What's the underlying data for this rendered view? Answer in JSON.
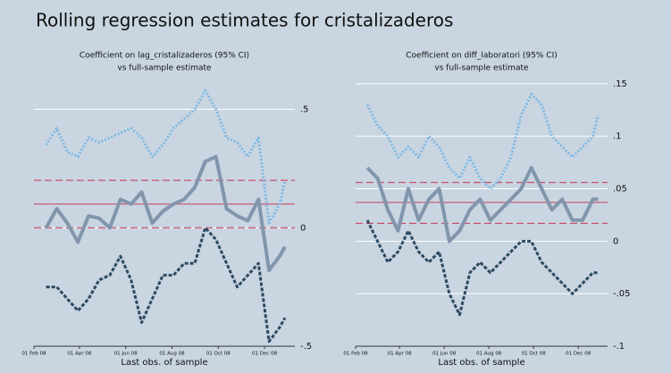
{
  "title": "Rolling regression estimates for cristalizaderos",
  "chart_data": [
    {
      "type": "line",
      "title": "Coefficient on lag_cristalizaderos (95% CI)",
      "subtitle": "vs full-sample estimate",
      "x_label": "Last obs. of sample",
      "x": [
        "2008-02-17",
        "2008-03-02",
        "2008-03-16",
        "2008-03-30",
        "2008-04-13",
        "2008-04-27",
        "2008-05-11",
        "2008-05-25",
        "2008-06-08",
        "2008-06-22",
        "2008-07-06",
        "2008-07-20",
        "2008-08-03",
        "2008-08-17",
        "2008-08-31",
        "2008-09-14",
        "2008-09-28",
        "2008-10-12",
        "2008-10-26",
        "2008-11-09",
        "2008-11-23",
        "2008-12-07",
        "2008-12-21",
        "2008-12-28"
      ],
      "series": [
        {
          "name": "upper",
          "color": "#7fb9e3",
          "values": [
            0.35,
            0.42,
            0.32,
            0.3,
            0.38,
            0.36,
            0.38,
            0.4,
            0.42,
            0.38,
            0.3,
            0.35,
            0.42,
            0.46,
            0.5,
            0.58,
            0.5,
            0.38,
            0.36,
            0.3,
            0.38,
            0.02,
            0.1,
            0.2
          ]
        },
        {
          "name": "estimate",
          "color": "#8196ac",
          "values": [
            0.0,
            0.08,
            0.02,
            -0.06,
            0.05,
            0.04,
            0.0,
            0.12,
            0.1,
            0.15,
            0.02,
            0.07,
            0.1,
            0.12,
            0.17,
            0.28,
            0.3,
            0.08,
            0.05,
            0.03,
            0.12,
            -0.18,
            -0.12,
            -0.08
          ]
        },
        {
          "name": "lower",
          "color": "#2d4a62",
          "values": [
            -0.25,
            -0.25,
            -0.3,
            -0.35,
            -0.3,
            -0.22,
            -0.2,
            -0.12,
            -0.22,
            -0.4,
            -0.3,
            -0.2,
            -0.2,
            -0.15,
            -0.15,
            0.0,
            -0.05,
            -0.15,
            -0.25,
            -0.2,
            -0.15,
            -0.48,
            -0.42,
            -0.38
          ]
        }
      ],
      "full_sample": {
        "estimate": 0.1,
        "ci": [
          0.0,
          0.2
        ],
        "color": "#c8506e"
      },
      "xlim": [
        "2008-02-01",
        "2009-01-10"
      ],
      "xticks": [
        {
          "value": "2008-02-01",
          "label": "01 Feb 08"
        },
        {
          "value": "2008-04-01",
          "label": "01 Apr 08"
        },
        {
          "value": "2008-06-01",
          "label": "01 Jun 08"
        },
        {
          "value": "2008-08-01",
          "label": "01 Aug 08"
        },
        {
          "value": "2008-10-01",
          "label": "01 Oct 08"
        },
        {
          "value": "2008-12-01",
          "label": "01 Dec 08"
        }
      ],
      "ylim": [
        -0.5,
        0.63
      ],
      "yticks": [
        {
          "value": -0.5,
          "label": "-.5"
        },
        0,
        {
          "value": 0.5,
          "label": ".5"
        }
      ],
      "grid": true
    },
    {
      "type": "line",
      "title": "Coefficient on diff_laboratori (95% CI)",
      "subtitle": "vs full-sample estimate",
      "x_label": "Last obs. of sample",
      "x": [
        "2008-02-17",
        "2008-03-02",
        "2008-03-16",
        "2008-03-30",
        "2008-04-13",
        "2008-04-27",
        "2008-05-11",
        "2008-05-25",
        "2008-06-08",
        "2008-06-22",
        "2008-07-06",
        "2008-07-20",
        "2008-08-03",
        "2008-08-17",
        "2008-08-31",
        "2008-09-14",
        "2008-09-28",
        "2008-10-12",
        "2008-10-26",
        "2008-11-09",
        "2008-11-23",
        "2008-12-07",
        "2008-12-21",
        "2008-12-28"
      ],
      "series": [
        {
          "name": "upper",
          "color": "#7fb9e3",
          "values": [
            0.13,
            0.11,
            0.1,
            0.08,
            0.09,
            0.08,
            0.1,
            0.09,
            0.07,
            0.06,
            0.08,
            0.06,
            0.05,
            0.06,
            0.08,
            0.12,
            0.14,
            0.13,
            0.1,
            0.09,
            0.08,
            0.09,
            0.1,
            0.12
          ]
        },
        {
          "name": "estimate",
          "color": "#8196ac",
          "values": [
            0.07,
            0.06,
            0.03,
            0.01,
            0.05,
            0.02,
            0.04,
            0.05,
            0.0,
            0.01,
            0.03,
            0.04,
            0.02,
            0.03,
            0.04,
            0.05,
            0.07,
            0.05,
            0.03,
            0.04,
            0.02,
            0.02,
            0.04,
            0.04
          ]
        },
        {
          "name": "lower",
          "color": "#2d4a62",
          "values": [
            0.02,
            0.0,
            -0.02,
            -0.01,
            0.01,
            -0.01,
            -0.02,
            -0.01,
            -0.05,
            -0.07,
            -0.03,
            -0.02,
            -0.03,
            -0.02,
            -0.01,
            0.0,
            0.0,
            -0.02,
            -0.03,
            -0.04,
            -0.05,
            -0.04,
            -0.03,
            -0.03
          ]
        }
      ],
      "full_sample": {
        "estimate": 0.037,
        "ci": [
          0.017,
          0.056
        ],
        "color": "#c8506e"
      },
      "xlim": [
        "2008-02-01",
        "2009-01-10"
      ],
      "xticks": [
        {
          "value": "2008-02-01",
          "label": "01 Feb 08"
        },
        {
          "value": "2008-04-01",
          "label": "01 Apr 08"
        },
        {
          "value": "2008-06-01",
          "label": "01 Jun 08"
        },
        {
          "value": "2008-08-01",
          "label": "01 Aug 08"
        },
        {
          "value": "2008-10-01",
          "label": "01 Oct 08"
        },
        {
          "value": "2008-12-01",
          "label": "01 Dec 08"
        }
      ],
      "ylim": [
        -0.1,
        0.155
      ],
      "yticks": [
        {
          "value": -0.1,
          "label": "-.1"
        },
        {
          "value": -0.05,
          "label": "-.05"
        },
        0,
        {
          "value": 0.05,
          "label": ".05"
        },
        {
          "value": 0.1,
          "label": ".1"
        },
        {
          "value": 0.15,
          "label": ".15"
        }
      ],
      "grid": true
    }
  ]
}
